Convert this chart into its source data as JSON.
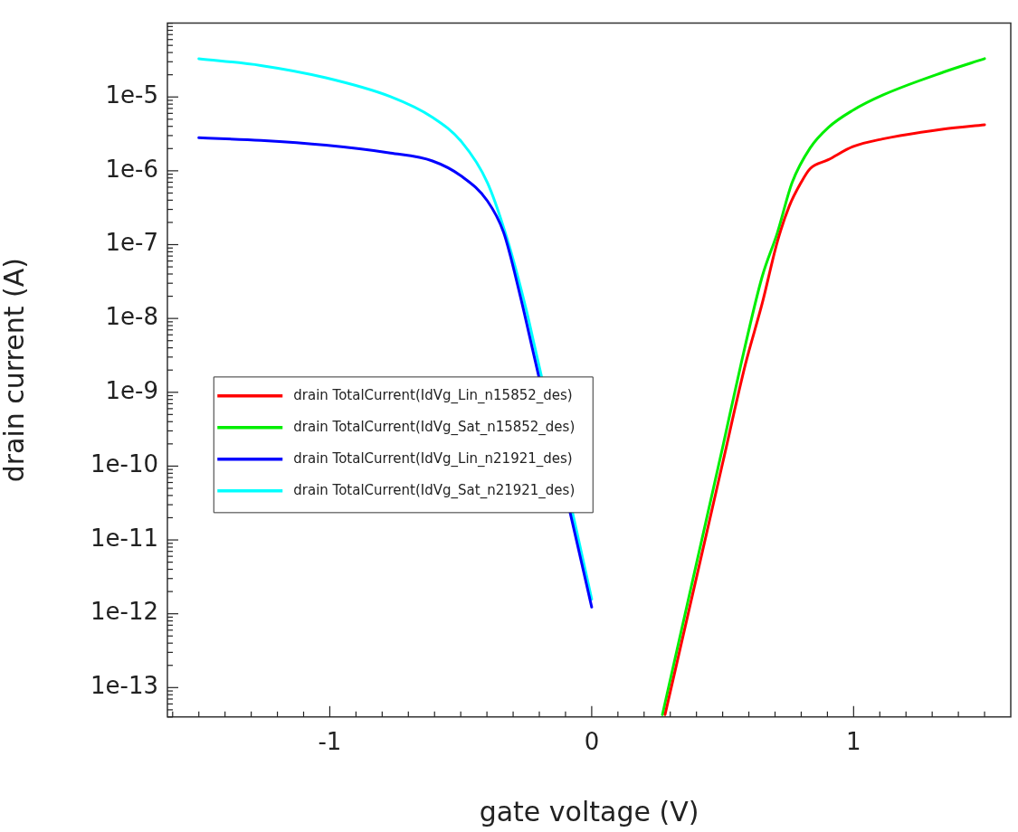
{
  "chart_data": {
    "type": "line",
    "xlabel": "gate voltage (V)",
    "ylabel": "drain current (A)",
    "log": "y",
    "grid": false,
    "legend": "left",
    "marker": "none",
    "line_style": "solid",
    "xlim": [
      -1.62,
      1.6
    ],
    "xticks": [
      {
        "value": -1.6,
        "label": null
      },
      {
        "value": -1.5,
        "label": null
      },
      {
        "value": -1.4,
        "label": null
      },
      {
        "value": -1.3,
        "label": null
      },
      {
        "value": -1.2,
        "label": null
      },
      {
        "value": -1.1,
        "label": null
      },
      -1,
      {
        "value": -0.9,
        "label": null
      },
      {
        "value": -0.8,
        "label": null
      },
      {
        "value": -0.7,
        "label": null
      },
      {
        "value": -0.6,
        "label": null
      },
      {
        "value": -0.5,
        "label": null
      },
      {
        "value": -0.4,
        "label": null
      },
      {
        "value": -0.3,
        "label": null
      },
      {
        "value": -0.2,
        "label": null
      },
      {
        "value": -0.1,
        "label": null
      },
      0,
      {
        "value": 0.1,
        "label": null
      },
      {
        "value": 0.2,
        "label": null
      },
      {
        "value": 0.3,
        "label": null
      },
      {
        "value": 0.4,
        "label": null
      },
      {
        "value": 0.5,
        "label": null
      },
      {
        "value": 0.6,
        "label": null
      },
      {
        "value": 0.7,
        "label": null
      },
      {
        "value": 0.8,
        "label": null
      },
      {
        "value": 0.9,
        "label": null
      },
      1,
      {
        "value": 1.1,
        "label": null
      },
      {
        "value": 1.2,
        "label": null
      },
      {
        "value": 1.3,
        "label": null
      },
      {
        "value": 1.4,
        "label": null
      },
      {
        "value": 1.5,
        "label": null
      }
    ],
    "ylim": [
      4e-14,
      0.0001
    ],
    "yticks": [
      {
        "value": 4e-14,
        "label": null
      },
      {
        "value": 5e-14,
        "label": null
      },
      {
        "value": 6e-14,
        "label": null
      },
      {
        "value": 7e-14,
        "label": null
      },
      {
        "value": 8e-14,
        "label": null
      },
      {
        "value": 9e-14,
        "label": null
      },
      {
        "value": 1e-13,
        "label": "1e-13"
      },
      {
        "value": 2e-13,
        "label": null
      },
      {
        "value": 3e-13,
        "label": null
      },
      {
        "value": 4e-13,
        "label": null
      },
      {
        "value": 5e-13,
        "label": null
      },
      {
        "value": 6e-13,
        "label": null
      },
      {
        "value": 7e-13,
        "label": null
      },
      {
        "value": 8e-13,
        "label": null
      },
      {
        "value": 9e-13,
        "label": null
      },
      {
        "value": 1e-12,
        "label": "1e-12"
      },
      {
        "value": 2e-12,
        "label": null
      },
      {
        "value": 3e-12,
        "label": null
      },
      {
        "value": 4e-12,
        "label": null
      },
      {
        "value": 5e-12,
        "label": null
      },
      {
        "value": 6e-12,
        "label": null
      },
      {
        "value": 7e-12,
        "label": null
      },
      {
        "value": 8e-12,
        "label": null
      },
      {
        "value": 9e-12,
        "label": null
      },
      {
        "value": 1e-11,
        "label": "1e-11"
      },
      {
        "value": 2e-11,
        "label": null
      },
      {
        "value": 3e-11,
        "label": null
      },
      {
        "value": 4e-11,
        "label": null
      },
      {
        "value": 5e-11,
        "label": null
      },
      {
        "value": 6e-11,
        "label": null
      },
      {
        "value": 7e-11,
        "label": null
      },
      {
        "value": 8e-11,
        "label": null
      },
      {
        "value": 9e-11,
        "label": null
      },
      {
        "value": 1e-10,
        "label": "1e-10"
      },
      {
        "value": 2e-10,
        "label": null
      },
      {
        "value": 3e-10,
        "label": null
      },
      {
        "value": 4e-10,
        "label": null
      },
      {
        "value": 5e-10,
        "label": null
      },
      {
        "value": 6e-10,
        "label": null
      },
      {
        "value": 7e-10,
        "label": null
      },
      {
        "value": 8e-10,
        "label": null
      },
      {
        "value": 9e-10,
        "label": null
      },
      {
        "value": 1e-09,
        "label": "1e-9"
      },
      {
        "value": 2e-09,
        "label": null
      },
      {
        "value": 3e-09,
        "label": null
      },
      {
        "value": 4e-09,
        "label": null
      },
      {
        "value": 5e-09,
        "label": null
      },
      {
        "value": 6e-09,
        "label": null
      },
      {
        "value": 7e-09,
        "label": null
      },
      {
        "value": 8e-09,
        "label": null
      },
      {
        "value": 9e-09,
        "label": null
      },
      {
        "value": 1e-08,
        "label": "1e-8"
      },
      {
        "value": 2e-08,
        "label": null
      },
      {
        "value": 3e-08,
        "label": null
      },
      {
        "value": 4e-08,
        "label": null
      },
      {
        "value": 5e-08,
        "label": null
      },
      {
        "value": 6e-08,
        "label": null
      },
      {
        "value": 7e-08,
        "label": null
      },
      {
        "value": 8e-08,
        "label": null
      },
      {
        "value": 9e-08,
        "label": null
      },
      {
        "value": 1e-07,
        "label": "1e-7"
      },
      {
        "value": 2e-07,
        "label": null
      },
      {
        "value": 3e-07,
        "label": null
      },
      {
        "value": 4e-07,
        "label": null
      },
      {
        "value": 5e-07,
        "label": null
      },
      {
        "value": 6e-07,
        "label": null
      },
      {
        "value": 7e-07,
        "label": null
      },
      {
        "value": 8e-07,
        "label": null
      },
      {
        "value": 9e-07,
        "label": null
      },
      {
        "value": 1e-06,
        "label": "1e-6"
      },
      {
        "value": 2e-06,
        "label": null
      },
      {
        "value": 3e-06,
        "label": null
      },
      {
        "value": 4e-06,
        "label": null
      },
      {
        "value": 5e-06,
        "label": null
      },
      {
        "value": 6e-06,
        "label": null
      },
      {
        "value": 7e-06,
        "label": null
      },
      {
        "value": 8e-06,
        "label": null
      },
      {
        "value": 9e-06,
        "label": null
      },
      {
        "value": 1e-05,
        "label": "1e-5"
      },
      {
        "value": 2e-05,
        "label": null
      },
      {
        "value": 3e-05,
        "label": null
      },
      {
        "value": 4e-05,
        "label": null
      },
      {
        "value": 5e-05,
        "label": null
      },
      {
        "value": 6e-05,
        "label": null
      },
      {
        "value": 7e-05,
        "label": null
      },
      {
        "value": 8e-05,
        "label": null
      },
      {
        "value": 9e-05,
        "label": null
      },
      {
        "value": 0.0001,
        "label": null
      }
    ],
    "series": [
      {
        "name": "drain TotalCurrent(IdVg_Lin_n15852_des)",
        "color": "#ff0000",
        "x": [
          0.28,
          0.4,
          0.5,
          0.587,
          0.651,
          0.709,
          0.754,
          0.799,
          0.834,
          0.903,
          0.997,
          1.111,
          1.343,
          1.5
        ],
        "values": [
          4.3e-14,
          3.1e-12,
          1.1e-10,
          2.4e-09,
          1.6e-08,
          1.1e-07,
          3.3e-07,
          6.9e-07,
          1.07e-06,
          1.41e-06,
          2.12e-06,
          2.7e-06,
          3.67e-06,
          4.2e-06
        ]
      },
      {
        "name": "drain TotalCurrent(IdVg_Sat_n15852_des)",
        "color": "#00ee00",
        "x": [
          0.27,
          0.4,
          0.5,
          0.57,
          0.651,
          0.709,
          0.765,
          0.834,
          0.903,
          0.997,
          1.111,
          1.343,
          1.5
        ],
        "values": [
          4.3e-14,
          4.8e-12,
          1.8e-10,
          2.4e-09,
          3.7e-08,
          1.45e-07,
          6.9e-07,
          2.04e-06,
          3.85e-06,
          6.6e-06,
          1.06e-05,
          2.17e-05,
          3.3e-05
        ]
      },
      {
        "name": "drain TotalCurrent(IdVg_Lin_n21921_des)",
        "color": "#0000ff",
        "x": [
          -1.5,
          -1.263,
          -1.015,
          -0.768,
          -0.608,
          -0.496,
          -0.398,
          -0.336,
          -0.274,
          -0.22,
          -0.075,
          0
        ],
        "values": [
          2.8e-06,
          2.58e-06,
          2.22e-06,
          1.74e-06,
          1.36e-06,
          8.4e-07,
          3.9e-07,
          1.45e-07,
          2.1e-08,
          3.1e-09,
          1.8e-11,
          1.23e-12
        ]
      },
      {
        "name": "drain TotalCurrent(IdVg_Sat_n21921_des)",
        "color": "#00ffff",
        "x": [
          -1.5,
          -1.263,
          -1.015,
          -0.768,
          -0.608,
          -0.496,
          -0.398,
          -0.323,
          -0.249,
          -0.22,
          -0.066,
          0
        ],
        "values": [
          3.3e-05,
          2.67e-05,
          1.82e-05,
          1.01e-05,
          5.3e-06,
          2.45e-06,
          6.9e-07,
          1.2e-07,
          1.27e-08,
          4.5e-09,
          1.8e-11,
          1.58e-12
        ]
      }
    ]
  }
}
